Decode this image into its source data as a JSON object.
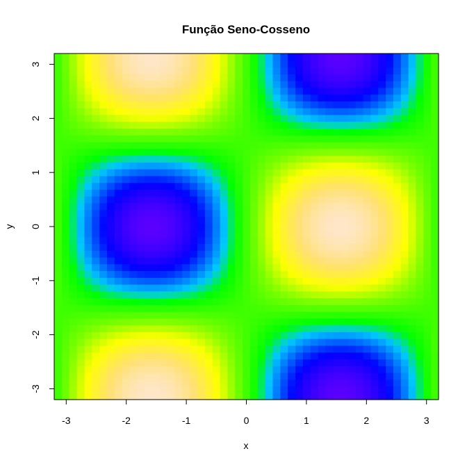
{
  "chart_data": {
    "type": "heatmap",
    "title": "Função Seno-Cosseno",
    "xlabel": "x",
    "ylabel": "y",
    "function": "sin(x) * cos(y)",
    "xlim": [
      -3.2,
      3.2
    ],
    "ylim": [
      -3.2,
      3.2
    ],
    "grid_size": 51,
    "z_range": [
      -1,
      1
    ],
    "colormap": "rainbow-like (blue → cyan → green → yellow → cream)",
    "x_ticks": [
      -3,
      -2,
      -1,
      0,
      1,
      2,
      3
    ],
    "y_ticks": [
      -3,
      -2,
      -1,
      0,
      1,
      2,
      3
    ],
    "x_tick_labels": [
      "-3",
      "-2",
      "-1",
      "0",
      "1",
      "2",
      "3"
    ],
    "y_tick_labels": [
      "-3",
      "-2",
      "-1",
      "0",
      "1",
      "2",
      "3"
    ],
    "color_stops": [
      {
        "z": -1.0,
        "color": "#5a00ff"
      },
      {
        "z": -0.7,
        "color": "#0000ff"
      },
      {
        "z": -0.35,
        "color": "#00c8ff"
      },
      {
        "z": -0.18,
        "color": "#00ff00"
      },
      {
        "z": 0.18,
        "color": "#7fff00"
      },
      {
        "z": 0.45,
        "color": "#ffff00"
      },
      {
        "z": 0.75,
        "color": "#ffe170"
      },
      {
        "z": 1.0,
        "color": "#ffe6c8"
      }
    ],
    "grid": false,
    "legend": "none"
  }
}
